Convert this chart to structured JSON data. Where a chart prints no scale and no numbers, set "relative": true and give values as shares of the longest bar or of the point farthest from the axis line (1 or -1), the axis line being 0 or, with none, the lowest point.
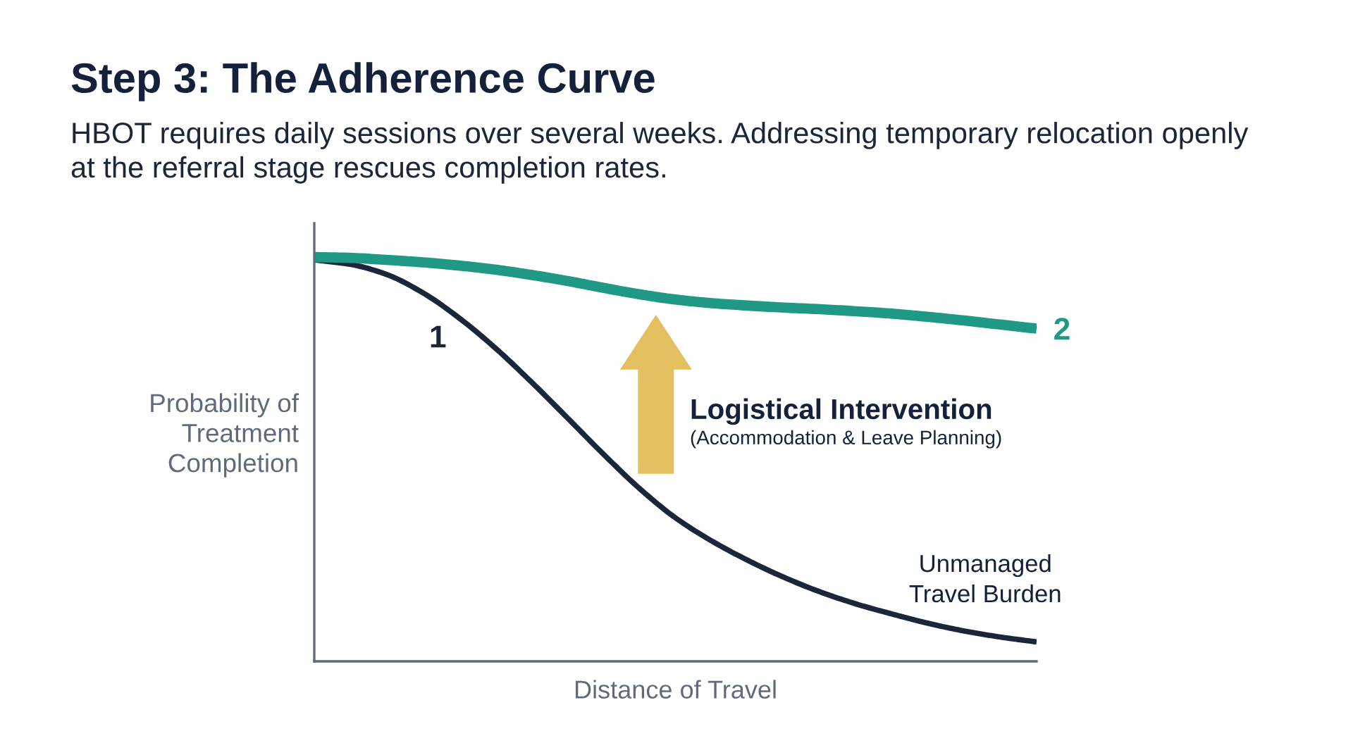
{
  "chart_data": {
    "type": "line",
    "title": "Step 3: The Adherence Curve",
    "subtitle": "HBOT requires daily sessions over several weeks. Addressing temporary relocation openly at the referral stage rescues completion rates.",
    "xlabel": "Distance of Travel",
    "ylabel": "Probability of\nTreatment\nCompletion",
    "relative": true,
    "tick_labels": false,
    "categories": [
      null,
      null,
      null,
      null,
      null,
      null,
      null,
      null,
      null,
      null,
      null,
      null,
      null,
      null,
      null,
      null,
      null,
      null,
      null,
      null,
      null
    ],
    "series": [
      {
        "name": "1",
        "color": "#1b263b",
        "values": [
          0.993,
          0.982,
          0.957,
          0.912,
          0.85,
          0.776,
          0.692,
          0.603,
          0.513,
          0.428,
          0.355,
          0.298,
          0.25,
          0.208,
          0.172,
          0.142,
          0.117,
          0.094,
          0.075,
          0.06,
          0.048
        ]
      },
      {
        "name": "2",
        "color": "#1f9985",
        "values": [
          1.0,
          0.998,
          0.993,
          0.987,
          0.979,
          0.969,
          0.956,
          0.941,
          0.924,
          0.908,
          0.895,
          0.886,
          0.88,
          0.875,
          0.871,
          0.866,
          0.86,
          0.852,
          0.843,
          0.833,
          0.823
        ]
      }
    ],
    "annotations": [
      "Logistical Intervention",
      "(Accommodation & Leave Planning)",
      "Unmanaged\nTravel Burden"
    ]
  }
}
